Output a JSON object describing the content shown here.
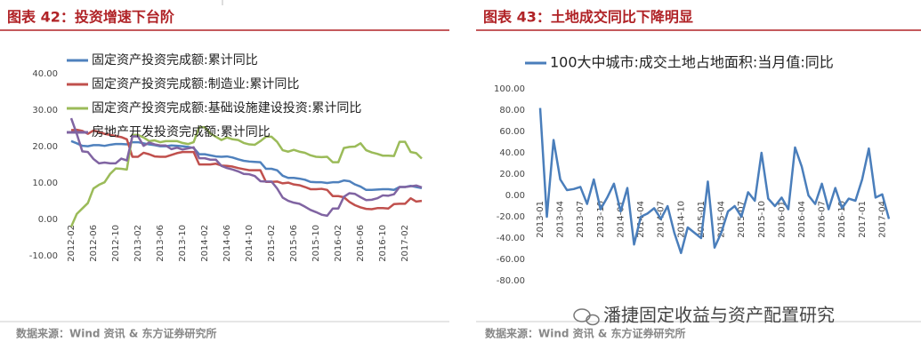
{
  "chart_data": [
    {
      "type": "line",
      "title": "图表 42：投资增速下台阶",
      "source": "数据来源：Wind 资讯 & 东方证券研究所",
      "categories": [
        "2012-02",
        null,
        null,
        null,
        "2012-06",
        null,
        null,
        null,
        "2012-10",
        null,
        null,
        null,
        "2013-02",
        null,
        null,
        null,
        "2013-06",
        null,
        null,
        null,
        "2013-10",
        null,
        null,
        null,
        "2014-02",
        null,
        null,
        null,
        "2014-06",
        null,
        null,
        null,
        "2014-10",
        null,
        null,
        null,
        "2015-02",
        null,
        null,
        null,
        "2015-06",
        null,
        null,
        null,
        "2015-10",
        null,
        null,
        null,
        "2016-02",
        null,
        null,
        null,
        "2016-06",
        null,
        null,
        null,
        "2016-10",
        null,
        null,
        null,
        "2017-02",
        null,
        null,
        null
      ],
      "series": [
        {
          "name": "固定资产投资完成额:累计同比",
          "color": "#4f81bd",
          "values": [
            21.5,
            20.9,
            20.2,
            20.1,
            20.4,
            20.4,
            20.2,
            20.5,
            20.7,
            20.7,
            20.6,
            21.2,
            21.2,
            20.9,
            20.6,
            20.4,
            20.1,
            20.1,
            20.3,
            20.2,
            20.1,
            19.9,
            19.6,
            17.9,
            17.9,
            17.6,
            17.3,
            17.2,
            17.3,
            17.0,
            16.5,
            16.1,
            15.9,
            15.8,
            15.7,
            13.9,
            13.9,
            13.5,
            12.0,
            11.4,
            11.4,
            11.2,
            10.9,
            10.3,
            10.2,
            10.2,
            10.0,
            10.2,
            10.2,
            10.7,
            10.5,
            9.6,
            9.0,
            8.1,
            8.1,
            8.2,
            8.3,
            8.3,
            8.1,
            8.9,
            8.9,
            9.2,
            8.9,
            8.6
          ]
        },
        {
          "name": "固定资产投资完成额:制造业:累计同比",
          "color": "#c0504d",
          "values": [
            24.5,
            24.6,
            24.3,
            23.5,
            24.4,
            24.0,
            23.5,
            23.2,
            22.9,
            22.6,
            22.0,
            17.2,
            17.2,
            18.3,
            17.9,
            17.3,
            17.2,
            17.2,
            17.7,
            18.2,
            18.5,
            18.5,
            18.5,
            15.1,
            15.1,
            15.1,
            15.3,
            14.8,
            14.7,
            14.5,
            14.1,
            13.8,
            13.5,
            13.5,
            13.5,
            10.3,
            10.3,
            10.4,
            9.9,
            10.1,
            9.6,
            9.4,
            8.9,
            8.3,
            8.3,
            8.4,
            8.1,
            6.4,
            6.4,
            6.1,
            4.8,
            3.9,
            3.3,
            2.9,
            2.8,
            3.1,
            3.1,
            3.0,
            4.2,
            4.3,
            4.3,
            5.8,
            4.9,
            5.1
          ]
        },
        {
          "name": "固定资产投资完成额:基础设施建设投资:累计同比",
          "color": "#9bbb59",
          "values": [
            -2,
            1.5,
            3,
            4.5,
            8.5,
            9.5,
            10.2,
            12.5,
            14,
            13.9,
            13.7,
            23.2,
            23.2,
            22.5,
            21.5,
            21.7,
            21.2,
            21.5,
            21.5,
            21.5,
            21.0,
            20.7,
            21.2,
            25.3,
            25.3,
            23.6,
            22.7,
            21.8,
            22.5,
            22.0,
            21.8,
            21.0,
            20.6,
            20.5,
            21.5,
            22.7,
            22.7,
            21.3,
            19.0,
            18.6,
            19.1,
            18.6,
            18.3,
            17.6,
            17.2,
            17.1,
            17.2,
            15.7,
            15.7,
            19.6,
            19.9,
            20.0,
            20.9,
            19.0,
            18.4,
            18.0,
            17.5,
            17.5,
            17.4,
            21.3,
            21.3,
            18.5,
            18.2,
            16.7
          ]
        },
        {
          "name": "房地产开发投资完成额:累计同比",
          "color": "#8064a2",
          "values": [
            27.8,
            23.5,
            18.7,
            18.5,
            16.6,
            15.4,
            15.6,
            15.4,
            15.4,
            16.7,
            16.2,
            22.8,
            22.8,
            20.2,
            21.1,
            20.6,
            20.3,
            20.3,
            19.3,
            19.7,
            19.2,
            19.5,
            19.8,
            16.8,
            16.8,
            16.4,
            16.4,
            14.7,
            14.1,
            13.7,
            13.2,
            12.5,
            12.4,
            11.9,
            10.5,
            10.4,
            10.4,
            8.5,
            6.0,
            5.1,
            4.6,
            4.3,
            3.5,
            2.6,
            2.0,
            1.3,
            1.0,
            3.0,
            3.0,
            6.2,
            7.2,
            7.0,
            6.1,
            5.3,
            5.4,
            5.8,
            6.6,
            6.5,
            6.9,
            8.9,
            8.9,
            9.1,
            9.3,
            8.8
          ]
        }
      ],
      "ylim": [
        -10,
        40
      ],
      "yticks": [
        {
          "value": -10,
          "label": "-10.00"
        },
        {
          "value": 0,
          "label": "0.00"
        },
        {
          "value": 10,
          "label": "10.00"
        },
        {
          "value": 20,
          "label": "20.00"
        },
        {
          "value": 30,
          "label": "30.00"
        },
        {
          "value": 40,
          "label": "40.00"
        }
      ],
      "grid": false
    },
    {
      "type": "line",
      "title": "图表 43：土地成交同比下降明显",
      "source": "数据来源：Wind 资讯 & 东方证券研究所",
      "categories": [
        "2013-01",
        null,
        null,
        "2013-04",
        null,
        null,
        "2013-07",
        null,
        null,
        "2013-10",
        null,
        null,
        "2014-01",
        null,
        null,
        "2014-04",
        null,
        null,
        "2014-07",
        null,
        null,
        "2014-10",
        null,
        null,
        "2015-01",
        null,
        null,
        "2015-04",
        null,
        null,
        "2015-07",
        null,
        null,
        "2015-10",
        null,
        null,
        "2016-01",
        null,
        null,
        "2016-04",
        null,
        null,
        "2016-07",
        null,
        null,
        "2016-10",
        null,
        null,
        "2017-01",
        null,
        null,
        "2017-04",
        null
      ],
      "series": [
        {
          "name": "100大中城市:成交土地占地面积:当月值:同比",
          "color": "#4a7ebb",
          "values": [
            82,
            -20,
            52,
            15,
            5,
            6,
            8,
            -8,
            15,
            -13,
            -2,
            11,
            -15,
            7,
            -46,
            -20,
            -17,
            -12,
            -22,
            -10,
            -35,
            -54,
            -30,
            -35,
            -40,
            13,
            -49,
            -35,
            -15,
            -10,
            -20,
            3,
            -5,
            40,
            -3,
            -10,
            -2,
            -13,
            45,
            27,
            0,
            -8,
            11,
            -13,
            7,
            -12,
            -3,
            -5,
            15,
            44,
            -2,
            1,
            -22
          ]
        }
      ],
      "ylim": [
        -80,
        100
      ],
      "yticks": [
        {
          "value": -80,
          "label": "-80.00"
        },
        {
          "value": -60,
          "label": "-60.00"
        },
        {
          "value": -40,
          "label": "-40.00"
        },
        {
          "value": -20,
          "label": "-20.00"
        },
        {
          "value": 0,
          "label": "0.00"
        },
        {
          "value": 20,
          "label": "20.00"
        },
        {
          "value": 40,
          "label": "40.00"
        },
        {
          "value": 60,
          "label": "60.00"
        },
        {
          "value": 80,
          "label": "80.00"
        },
        {
          "value": 100,
          "label": "100.00"
        }
      ],
      "grid": false
    }
  ],
  "watermark": "潘捷固定收益与资产配置研究"
}
